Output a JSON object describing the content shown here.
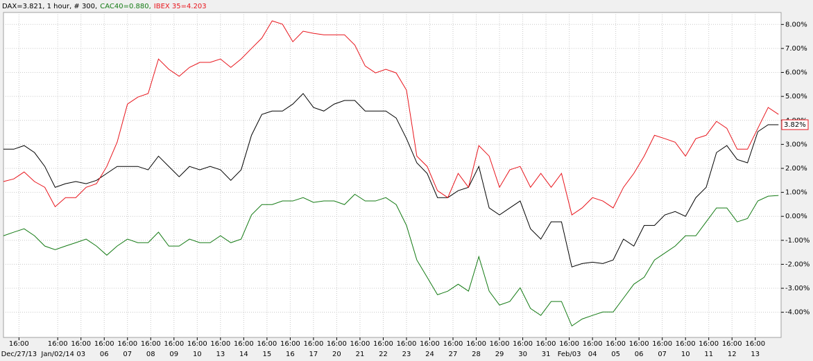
{
  "chart_data": {
    "type": "line",
    "grid": true,
    "xlim": [
      0,
      301
    ],
    "ylim": [
      -5.05,
      8.5
    ],
    "yaxis_side": "right",
    "yticks": [
      {
        "value": -4,
        "label": "-4.00%"
      },
      {
        "value": -3,
        "label": "-3.00%"
      },
      {
        "value": -2,
        "label": "-2.00%"
      },
      {
        "value": -1,
        "label": "-1.00%"
      },
      {
        "value": 0,
        "label": "0.00%"
      },
      {
        "value": 1,
        "label": "1.00%"
      },
      {
        "value": 2,
        "label": "2.00%"
      },
      {
        "value": 3,
        "label": "3.00%"
      },
      {
        "value": 4,
        "label": "4.00%"
      },
      {
        "value": 5,
        "label": "5.00%"
      },
      {
        "value": 6,
        "label": "6.00%"
      },
      {
        "value": 7,
        "label": "7.00%"
      },
      {
        "value": 8,
        "label": "8.00%"
      }
    ],
    "xticks": [
      {
        "value": 6,
        "label": "16:00"
      },
      {
        "value": 21,
        "label": "16:00"
      },
      {
        "value": 30,
        "label": "16:00"
      },
      {
        "value": 39,
        "label": "16:00"
      },
      {
        "value": 48,
        "label": "16:00"
      },
      {
        "value": 57,
        "label": "16:00"
      },
      {
        "value": 66,
        "label": "16:00"
      },
      {
        "value": 75,
        "label": "16:00"
      },
      {
        "value": 84,
        "label": "16:00"
      },
      {
        "value": 93,
        "label": "16:00"
      },
      {
        "value": 102,
        "label": "16:00"
      },
      {
        "value": 111,
        "label": "16:00"
      },
      {
        "value": 120,
        "label": "16:00"
      },
      {
        "value": 129,
        "label": "16:00"
      },
      {
        "value": 138,
        "label": "16:00"
      },
      {
        "value": 147,
        "label": "16:00"
      },
      {
        "value": 156,
        "label": "16:00"
      },
      {
        "value": 165,
        "label": "16:00"
      },
      {
        "value": 174,
        "label": "16:00"
      },
      {
        "value": 183,
        "label": "16:00"
      },
      {
        "value": 192,
        "label": "16:00"
      },
      {
        "value": 201,
        "label": "16:00"
      },
      {
        "value": 210,
        "label": "16:00"
      },
      {
        "value": 219,
        "label": "16:00"
      },
      {
        "value": 228,
        "label": "16:00"
      },
      {
        "value": 237,
        "label": "16:00"
      },
      {
        "value": 246,
        "label": "16:00"
      },
      {
        "value": 255,
        "label": "16:00"
      },
      {
        "value": 264,
        "label": "16:00"
      },
      {
        "value": 273,
        "label": "16:00"
      },
      {
        "value": 282,
        "label": "16:00"
      },
      {
        "value": 291,
        "label": "16:00"
      }
    ],
    "xtick_dates": [
      "Dec/27/13",
      "Jan/02/14",
      "03",
      "06",
      "07",
      "08",
      "09",
      "10",
      "13",
      "14",
      "15",
      "16",
      "17",
      "20",
      "21",
      "22",
      "23",
      "24",
      "27",
      "28",
      "29",
      "30",
      "31",
      "Feb/03",
      "04",
      "05",
      "06",
      "07",
      "10",
      "11",
      "12",
      "13"
    ],
    "x": [
      0,
      4,
      8,
      12,
      16,
      20,
      24,
      28,
      32,
      36,
      40,
      44,
      48,
      52,
      56,
      60,
      64,
      68,
      72,
      76,
      80,
      84,
      88,
      92,
      96,
      100,
      104,
      108,
      112,
      116,
      120,
      124,
      128,
      132,
      136,
      140,
      144,
      148,
      152,
      156,
      160,
      164,
      168,
      172,
      176,
      180,
      184,
      188,
      192,
      196,
      200,
      204,
      208,
      212,
      216,
      220,
      224,
      228,
      232,
      236,
      240,
      244,
      248,
      252,
      256,
      260,
      264,
      268,
      272,
      276,
      280,
      284,
      288,
      292,
      296,
      300
    ],
    "series": [
      {
        "name": "DAX=3.821, 1 hour, # 300,",
        "color": "#000000",
        "values": [
          2.8,
          2.8,
          2.95,
          2.66,
          2.08,
          1.21,
          1.36,
          1.45,
          1.36,
          1.5,
          1.79,
          2.08,
          2.08,
          2.08,
          1.94,
          2.51,
          2.08,
          1.65,
          2.08,
          1.94,
          2.08,
          1.94,
          1.5,
          1.94,
          3.38,
          4.25,
          4.39,
          4.39,
          4.68,
          5.12,
          4.54,
          4.39,
          4.68,
          4.83,
          4.83,
          4.39,
          4.39,
          4.39,
          4.1,
          3.24,
          2.23,
          1.79,
          0.78,
          0.78,
          1.07,
          1.21,
          2.08,
          0.35,
          0.06,
          0.35,
          0.64,
          -0.52,
          -0.95,
          -0.23,
          -0.23,
          -2.11,
          -1.97,
          -1.91,
          -1.97,
          -1.82,
          -0.95,
          -1.24,
          -0.38,
          -0.38,
          0.06,
          0.2,
          0.0,
          0.78,
          1.21,
          2.66,
          2.95,
          2.37,
          2.23,
          3.53,
          3.82,
          3.82
        ]
      },
      {
        "name": "CAC40=0.880,",
        "color": "#137a13",
        "values": [
          -0.81,
          -0.66,
          -0.52,
          -0.81,
          -1.24,
          -1.39,
          -1.24,
          -1.1,
          -0.95,
          -1.24,
          -1.62,
          -1.24,
          -0.95,
          -1.1,
          -1.1,
          -0.66,
          -1.24,
          -1.24,
          -0.95,
          -1.1,
          -1.1,
          -0.81,
          -1.1,
          -0.95,
          0.06,
          0.49,
          0.49,
          0.64,
          0.64,
          0.78,
          0.58,
          0.64,
          0.64,
          0.49,
          0.92,
          0.64,
          0.64,
          0.78,
          0.49,
          -0.38,
          -1.82,
          -2.54,
          -3.27,
          -3.12,
          -2.83,
          -3.12,
          -1.68,
          -3.12,
          -3.7,
          -3.55,
          -2.98,
          -3.84,
          -4.13,
          -3.55,
          -3.55,
          -4.57,
          -4.28,
          -4.13,
          -3.99,
          -3.99,
          -3.41,
          -2.83,
          -2.54,
          -1.82,
          -1.53,
          -1.24,
          -0.81,
          -0.81,
          -0.23,
          0.35,
          0.35,
          -0.23,
          -0.09,
          0.64,
          0.84,
          0.87
        ]
      },
      {
        "name": "IBEX 35=4.203",
        "color": "#e8141b",
        "values": [
          1.45,
          1.56,
          1.85,
          1.45,
          1.21,
          0.4,
          0.78,
          0.78,
          1.21,
          1.36,
          2.08,
          3.09,
          4.68,
          4.97,
          5.12,
          6.56,
          6.13,
          5.84,
          6.21,
          6.42,
          6.42,
          6.56,
          6.21,
          6.56,
          7.0,
          7.43,
          8.15,
          8.01,
          7.28,
          7.72,
          7.63,
          7.57,
          7.57,
          7.57,
          7.14,
          6.27,
          5.98,
          6.13,
          5.98,
          5.26,
          2.51,
          2.08,
          1.07,
          0.78,
          1.79,
          1.21,
          2.95,
          2.51,
          1.21,
          1.94,
          2.08,
          1.21,
          1.79,
          1.21,
          1.79,
          0.06,
          0.35,
          0.78,
          0.64,
          0.35,
          1.21,
          1.79,
          2.51,
          3.38,
          3.24,
          3.09,
          2.51,
          3.24,
          3.38,
          3.96,
          3.67,
          2.8,
          2.8,
          3.67,
          4.54,
          4.25
        ]
      }
    ],
    "last_value": {
      "value": 3.82,
      "label": "3.82%",
      "color": "#2020c0",
      "border": "#e8141b"
    }
  }
}
